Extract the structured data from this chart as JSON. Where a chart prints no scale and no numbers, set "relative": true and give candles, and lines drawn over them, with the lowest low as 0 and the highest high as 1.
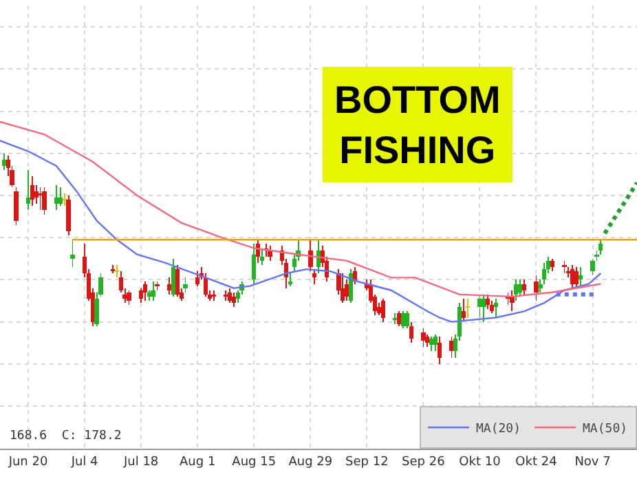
{
  "chart_data": {
    "type": "candlestick",
    "title": "BOTTOM FISHING",
    "relative": true,
    "grid": true,
    "legend": "bottom right",
    "annotations": [
      "168.6  C: 178.2"
    ],
    "xlim": [
      "--06-13",
      "--11-18"
    ],
    "xticks": [
      {
        "value": "--06-20",
        "label": "Jun 20"
      },
      {
        "value": "--07-04",
        "label": "Jul 4"
      },
      {
        "value": "--07-18",
        "label": "Jul 18"
      },
      {
        "value": "--08-01",
        "label": "Aug 1"
      },
      {
        "value": "--08-15",
        "label": "Aug 15"
      },
      {
        "value": "--08-29",
        "label": "Aug 29"
      },
      {
        "value": "--09-12",
        "label": "Sep 12"
      },
      {
        "value": "--09-26",
        "label": "Sep 26"
      },
      {
        "value": "--10-10",
        "label": "Okt 10"
      },
      {
        "value": "--10-24",
        "label": "Okt 24"
      },
      {
        "value": "--11-07",
        "label": "Nov 7"
      }
    ],
    "x": [
      "--06-14",
      "--06-15",
      "--06-16",
      "--06-17",
      "--06-20",
      "--06-21",
      "--06-22",
      "--06-23",
      "--06-24",
      "--06-27",
      "--06-28",
      "--06-29",
      "--06-30",
      "--07-01",
      "--07-04",
      "--07-05",
      "--07-06",
      "--07-07",
      "--07-08",
      "--07-11",
      "--07-12",
      "--07-13",
      "--07-14",
      "--07-15",
      "--07-18",
      "--07-19",
      "--07-20",
      "--07-21",
      "--07-22",
      "--07-25",
      "--07-26",
      "--07-27",
      "--07-28",
      "--07-29",
      "--08-01",
      "--08-02",
      "--08-03",
      "--08-04",
      "--08-05",
      "--08-08",
      "--08-09",
      "--08-10",
      "--08-11",
      "--08-12",
      "--08-15",
      "--08-16",
      "--08-17",
      "--08-18",
      "--08-19",
      "--08-22",
      "--08-23",
      "--08-24",
      "--08-25",
      "--08-26",
      "--08-29",
      "--08-30",
      "--08-31",
      "--09-01",
      "--09-02",
      "--09-05",
      "--09-06",
      "--09-07",
      "--09-08",
      "--09-09",
      "--09-12",
      "--09-13",
      "--09-14",
      "--09-15",
      "--09-16",
      "--09-19",
      "--09-20",
      "--09-21",
      "--09-22",
      "--09-23",
      "--09-26",
      "--09-27",
      "--09-28",
      "--09-29",
      "--09-30",
      "--10-03",
      "--10-04",
      "--10-05",
      "--10-06",
      "--10-07",
      "--10-10",
      "--10-11",
      "--10-12",
      "--10-13",
      "--10-14",
      "--10-17",
      "--10-18",
      "--10-19",
      "--10-20",
      "--10-21",
      "--10-24",
      "--10-25",
      "--10-26",
      "--10-27",
      "--10-28",
      "--10-31",
      "--11-01",
      "--11-02",
      "--11-03",
      "--11-04",
      "--11-07",
      "--11-08",
      "--11-09"
    ],
    "ohlc": [
      [
        0.94,
        1.0,
        0.92,
        0.97
      ],
      [
        0.97,
        0.99,
        0.89,
        0.93
      ],
      [
        0.92,
        0.94,
        0.84,
        0.85
      ],
      [
        0.82,
        0.84,
        0.66,
        0.68
      ],
      [
        0.76,
        0.92,
        0.73,
        0.79
      ],
      [
        0.85,
        0.89,
        0.75,
        0.78
      ],
      [
        0.82,
        0.85,
        0.76,
        0.79
      ],
      [
        0.81,
        0.84,
        0.73,
        0.8
      ],
      [
        0.82,
        0.84,
        0.71,
        0.73
      ],
      [
        0.76,
        0.85,
        0.73,
        0.79
      ],
      [
        0.76,
        0.84,
        0.75,
        0.79
      ],
      [
        0.78,
        0.81,
        0.75,
        0.78
      ],
      [
        0.78,
        0.8,
        0.61,
        0.63
      ],
      [
        0.5,
        0.59,
        0.46,
        0.52
      ],
      [
        0.51,
        0.57,
        0.41,
        0.43
      ],
      [
        0.43,
        0.45,
        0.3,
        0.31
      ],
      [
        0.34,
        0.36,
        0.18,
        0.2
      ],
      [
        0.19,
        0.34,
        0.18,
        0.31
      ],
      [
        0.33,
        0.43,
        0.32,
        0.41
      ],
      [
        0.45,
        0.47,
        0.43,
        0.44
      ],
      [
        0.44,
        0.47,
        0.41,
        0.44
      ],
      [
        0.41,
        0.44,
        0.34,
        0.35
      ],
      [
        0.33,
        0.36,
        0.29,
        0.31
      ],
      [
        0.34,
        0.35,
        0.28,
        0.3
      ],
      [
        0.35,
        0.36,
        0.29,
        0.31
      ],
      [
        0.38,
        0.39,
        0.3,
        0.34
      ],
      [
        0.32,
        0.35,
        0.3,
        0.34
      ],
      [
        0.32,
        0.39,
        0.3,
        0.35
      ],
      [
        0.38,
        0.39,
        0.35,
        0.37
      ],
      [
        0.38,
        0.41,
        0.33,
        0.35
      ],
      [
        0.33,
        0.5,
        0.32,
        0.46
      ],
      [
        0.45,
        0.47,
        0.32,
        0.33
      ],
      [
        0.34,
        0.36,
        0.3,
        0.31
      ],
      [
        0.36,
        0.41,
        0.34,
        0.38
      ],
      [
        0.41,
        0.44,
        0.37,
        0.38
      ],
      [
        0.43,
        0.46,
        0.4,
        0.41
      ],
      [
        0.41,
        0.43,
        0.32,
        0.33
      ],
      [
        0.33,
        0.35,
        0.3,
        0.31
      ],
      [
        0.33,
        0.35,
        0.3,
        0.32
      ],
      [
        0.33,
        0.35,
        0.3,
        0.32
      ],
      [
        0.34,
        0.36,
        0.29,
        0.3
      ],
      [
        0.32,
        0.34,
        0.27,
        0.29
      ],
      [
        0.31,
        0.35,
        0.29,
        0.34
      ],
      [
        0.35,
        0.39,
        0.33,
        0.38
      ],
      [
        0.4,
        0.57,
        0.38,
        0.52
      ],
      [
        0.57,
        0.59,
        0.48,
        0.51
      ],
      [
        0.49,
        0.55,
        0.47,
        0.51
      ],
      [
        0.55,
        0.57,
        0.51,
        0.54
      ],
      [
        0.54,
        0.56,
        0.49,
        0.51
      ],
      [
        0.54,
        0.56,
        0.47,
        0.49
      ],
      [
        0.48,
        0.5,
        0.36,
        0.41
      ],
      [
        0.38,
        0.43,
        0.37,
        0.39
      ],
      [
        0.46,
        0.52,
        0.44,
        0.5
      ],
      [
        0.51,
        0.59,
        0.49,
        0.54
      ],
      [
        0.54,
        0.59,
        0.44,
        0.46
      ],
      [
        0.43,
        0.45,
        0.38,
        0.41
      ],
      [
        0.46,
        0.59,
        0.43,
        0.54
      ],
      [
        0.54,
        0.56,
        0.46,
        0.48
      ],
      [
        0.49,
        0.51,
        0.39,
        0.41
      ],
      [
        0.43,
        0.45,
        0.33,
        0.35
      ],
      [
        0.36,
        0.43,
        0.29,
        0.3
      ],
      [
        0.38,
        0.4,
        0.3,
        0.32
      ],
      [
        0.3,
        0.45,
        0.29,
        0.43
      ],
      [
        0.44,
        0.46,
        0.38,
        0.39
      ],
      [
        0.38,
        0.4,
        0.35,
        0.36
      ],
      [
        0.38,
        0.4,
        0.29,
        0.3
      ],
      [
        0.32,
        0.33,
        0.23,
        0.25
      ],
      [
        0.27,
        0.29,
        0.23,
        0.24
      ],
      [
        0.3,
        0.31,
        0.2,
        0.22
      ],
      [
        0.21,
        0.24,
        0.19,
        0.22
      ],
      [
        0.24,
        0.25,
        0.18,
        0.19
      ],
      [
        0.18,
        0.25,
        0.17,
        0.24
      ],
      [
        0.18,
        0.25,
        0.17,
        0.24
      ],
      [
        0.18,
        0.2,
        0.1,
        0.12
      ],
      [
        0.15,
        0.17,
        0.08,
        0.11
      ],
      [
        0.13,
        0.14,
        0.08,
        0.1
      ],
      [
        0.09,
        0.13,
        0.06,
        0.12
      ],
      [
        0.09,
        0.14,
        0.06,
        0.13
      ],
      [
        0.1,
        0.13,
        0.0,
        0.03
      ],
      [
        0.11,
        0.13,
        0.03,
        0.06
      ],
      [
        0.06,
        0.14,
        0.03,
        0.12
      ],
      [
        0.13,
        0.29,
        0.11,
        0.27
      ],
      [
        0.25,
        0.31,
        0.21,
        0.22
      ],
      [
        0.27,
        0.31,
        0.22,
        0.27
      ],
      [
        0.27,
        0.32,
        0.22,
        0.31
      ],
      [
        0.27,
        0.33,
        0.2,
        0.31
      ],
      [
        0.31,
        0.33,
        0.26,
        0.28
      ],
      [
        0.28,
        0.3,
        0.24,
        0.25
      ],
      [
        0.27,
        0.31,
        0.22,
        0.29
      ],
      [
        0.32,
        0.34,
        0.28,
        0.31
      ],
      [
        0.32,
        0.35,
        0.25,
        0.29
      ],
      [
        0.33,
        0.4,
        0.3,
        0.38
      ],
      [
        0.34,
        0.4,
        0.32,
        0.38
      ],
      [
        0.38,
        0.4,
        0.33,
        0.35
      ],
      [
        0.39,
        0.42,
        0.3,
        0.34
      ],
      [
        0.36,
        0.4,
        0.34,
        0.38
      ],
      [
        0.4,
        0.48,
        0.38,
        0.45
      ],
      [
        0.45,
        0.51,
        0.43,
        0.49
      ],
      [
        0.49,
        0.5,
        0.44,
        0.46
      ],
      [
        0.47,
        0.49,
        0.43,
        0.46
      ],
      [
        0.44,
        0.46,
        0.41,
        0.43
      ],
      [
        0.45,
        0.47,
        0.36,
        0.38
      ],
      [
        0.44,
        0.46,
        0.37,
        0.38
      ],
      [
        0.4,
        0.46,
        0.37,
        0.42
      ],
      [
        0.44,
        0.5,
        0.42,
        0.49
      ],
      [
        0.51,
        0.54,
        0.49,
        0.52
      ],
      [
        0.54,
        0.59,
        0.52,
        0.57
      ]
    ],
    "series": [
      {
        "type": "line",
        "name": "MA(20)",
        "color": "#6673ee",
        "line_style": "solid",
        "x": [
          "--06-13",
          "--06-20",
          "--06-27",
          "--07-02",
          "--07-07",
          "--07-12",
          "--07-17",
          "--07-24",
          "--08-03",
          "--08-10",
          "--08-14",
          "--08-23",
          "--08-28",
          "--09-03",
          "--09-10",
          "--09-18",
          "--09-27",
          "--09-30",
          "--10-03",
          "--10-14",
          "--10-21",
          "--10-26",
          "--10-31",
          "--11-06",
          "--11-09"
        ],
        "values": [
          1.06,
          1.01,
          0.94,
          0.82,
          0.68,
          0.59,
          0.52,
          0.48,
          0.41,
          0.36,
          0.37,
          0.43,
          0.45,
          0.44,
          0.39,
          0.35,
          0.25,
          0.22,
          0.2,
          0.22,
          0.25,
          0.29,
          0.35,
          0.38,
          0.43
        ]
      },
      {
        "type": "line",
        "name": "MA(50)",
        "color": "#f06a80",
        "line_style": "solid",
        "x": [
          "--06-13",
          "--06-24",
          "--07-06",
          "--07-17",
          "--07-28",
          "--08-07",
          "--08-15",
          "--08-26",
          "--09-07",
          "--09-18",
          "--09-24",
          "--10-05",
          "--10-18",
          "--10-28",
          "--11-09"
        ],
        "values": [
          1.15,
          1.09,
          0.96,
          0.8,
          0.67,
          0.6,
          0.55,
          0.52,
          0.49,
          0.41,
          0.41,
          0.33,
          0.32,
          0.34,
          0.38
        ]
      },
      {
        "type": "line",
        "color": "#f5a300",
        "line_style": "solid",
        "x": [
          "--07-01",
          "--11-18"
        ],
        "values": [
          0.59,
          0.59
        ]
      },
      {
        "type": "line",
        "color": "#6673ee",
        "line_style": "dotted",
        "x": [
          "--10-29",
          "--11-08"
        ],
        "values": [
          0.33,
          0.33
        ]
      },
      {
        "type": "line",
        "color": "#22a030",
        "line_style": "dotted",
        "x": [
          "--11-10",
          "--11-18"
        ],
        "values": [
          0.62,
          0.86
        ]
      }
    ]
  }
}
